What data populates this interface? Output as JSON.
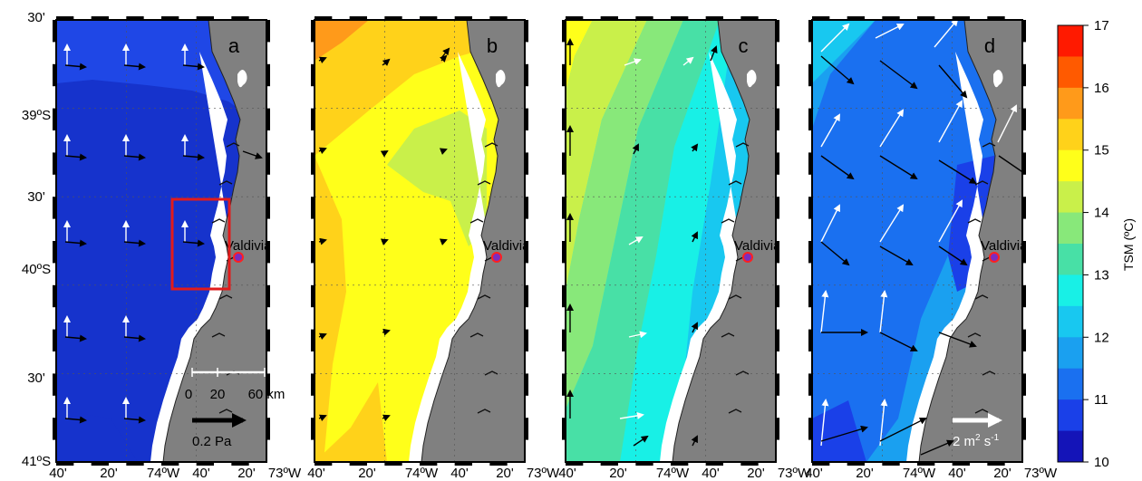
{
  "y_ticks": [
    "30'",
    "39ºS",
    "30'",
    "40ºS",
    "30'",
    "41ºS"
  ],
  "x_ticks": [
    "40'",
    "20'",
    "74ºW",
    "40'",
    "20'",
    "73ºW"
  ],
  "panels": [
    {
      "letter": "a",
      "place": "Valdivia"
    },
    {
      "letter": "b",
      "place": "Valdivia"
    },
    {
      "letter": "c",
      "place": "Valdivia"
    },
    {
      "letter": "d",
      "place": "Valdivia"
    }
  ],
  "scale_bar": {
    "t0": "0",
    "t1": "20",
    "t2": "60 km"
  },
  "stress_ref": "0.2 Pa",
  "flux_ref": {
    "base": "2 m",
    "exp2": "2",
    "mid": " s",
    "exp1": "-1"
  },
  "colorbar": {
    "label": "TSM (ºC)",
    "ticks": [
      "17",
      "16",
      "15",
      "14",
      "13",
      "12",
      "11",
      "10"
    ],
    "colors": [
      "#ff1a00",
      "#ff5a00",
      "#ff9a1a",
      "#ffd21a",
      "#ffff1a",
      "#c9f04a",
      "#88e87a",
      "#48e0a6",
      "#18f0e6",
      "#18c8f0",
      "#1aa0f0",
      "#1a70f0",
      "#1a40e8",
      "#1414b8"
    ]
  },
  "colors": {
    "land": "#808080",
    "a_main": "#1f47e6",
    "a_dark": "#1633cc",
    "highlight_box": "#e21b1b",
    "marker_fill": "#7b2cbf",
    "marker_ring": "#ff2020"
  }
}
